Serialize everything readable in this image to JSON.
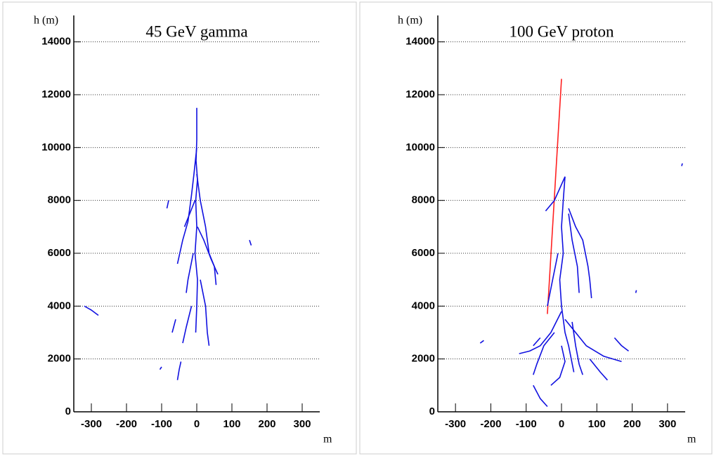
{
  "chart_data": [
    {
      "type": "line",
      "title": "45 GeV gamma",
      "ylabel": "h (m)",
      "xlabel": "m",
      "xlim": [
        -350,
        350
      ],
      "ylim": [
        0,
        15000
      ],
      "xticks": [
        -300,
        -200,
        -100,
        0,
        100,
        200,
        300
      ],
      "yticks": [
        0,
        2000,
        4000,
        6000,
        8000,
        10000,
        12000,
        14000
      ],
      "grid": true,
      "series": [
        {
          "color": "#1010e0",
          "x": [
            0,
            0,
            -2,
            2,
            -3,
            0,
            -5,
            2,
            0,
            -3
          ],
          "values": [
            11500,
            10300,
            9500,
            8800,
            8000,
            7000,
            6000,
            5000,
            4000,
            3000
          ]
        },
        {
          "color": "#1010e0",
          "x": [
            0,
            -8,
            -15,
            -25,
            -40,
            -55
          ],
          "values": [
            10000,
            9000,
            8200,
            7200,
            6500,
            5600
          ]
        },
        {
          "color": "#1010e0",
          "x": [
            0,
            10,
            25,
            35,
            50,
            55
          ],
          "values": [
            9000,
            8000,
            7000,
            6000,
            5500,
            4800
          ]
        },
        {
          "color": "#1010e0",
          "x": [
            -5,
            -20,
            -35
          ],
          "values": [
            8000,
            7500,
            7000
          ]
        },
        {
          "color": "#1010e0",
          "x": [
            2,
            20,
            40,
            60
          ],
          "values": [
            7000,
            6500,
            5800,
            5200
          ]
        },
        {
          "color": "#1010e0",
          "x": [
            -10,
            -25,
            -30
          ],
          "values": [
            6000,
            5000,
            4500
          ]
        },
        {
          "color": "#1010e0",
          "x": [
            10,
            25,
            30,
            35
          ],
          "values": [
            5000,
            4000,
            3000,
            2500
          ]
        },
        {
          "color": "#1010e0",
          "x": [
            -15,
            -30,
            -40
          ],
          "values": [
            4000,
            3200,
            2600
          ]
        },
        {
          "color": "#1010e0",
          "x": [
            -45,
            -50,
            -55
          ],
          "values": [
            1900,
            1600,
            1200
          ]
        },
        {
          "color": "#1010e0",
          "x": [
            -320,
            -300,
            -280
          ],
          "values": [
            4000,
            3850,
            3650
          ]
        },
        {
          "color": "#1010e0",
          "x": [
            -60,
            -70
          ],
          "values": [
            3500,
            3000
          ]
        },
        {
          "color": "#1010e0",
          "x": [
            -80,
            -85
          ],
          "values": [
            8000,
            7700
          ]
        },
        {
          "color": "#1010e0",
          "x": [
            150,
            155
          ],
          "values": [
            6500,
            6300
          ]
        },
        {
          "color": "#1010e0",
          "x": [
            -100,
            -105
          ],
          "values": [
            1700,
            1600
          ]
        }
      ]
    },
    {
      "type": "line",
      "title": "100 GeV proton",
      "ylabel": "h (m)",
      "xlabel": "m",
      "xlim": [
        -350,
        350
      ],
      "ylim": [
        0,
        15000
      ],
      "xticks": [
        -300,
        -200,
        -100,
        0,
        100,
        200,
        300
      ],
      "yticks": [
        0,
        2000,
        4000,
        6000,
        8000,
        10000,
        12000,
        14000
      ],
      "grid": true,
      "series": [
        {
          "color": "#ff2020",
          "x": [
            -40,
            0
          ],
          "values": [
            3700,
            12600
          ]
        },
        {
          "color": "#1010e0",
          "x": [
            10,
            5,
            0,
            5,
            -5,
            0,
            10,
            20,
            35
          ],
          "values": [
            8900,
            8000,
            7000,
            6000,
            5000,
            4000,
            3000,
            2500,
            1500
          ]
        },
        {
          "color": "#1010e0",
          "x": [
            10,
            -20,
            -45
          ],
          "values": [
            8900,
            8000,
            7600
          ]
        },
        {
          "color": "#1010e0",
          "x": [
            20,
            40,
            60,
            75,
            80,
            85
          ],
          "values": [
            7700,
            7000,
            6500,
            5500,
            5000,
            4300
          ]
        },
        {
          "color": "#1010e0",
          "x": [
            20,
            30,
            45,
            50
          ],
          "values": [
            7500,
            6500,
            5500,
            4500
          ]
        },
        {
          "color": "#1010e0",
          "x": [
            -10,
            -25,
            -40
          ],
          "values": [
            6000,
            5000,
            4000
          ]
        },
        {
          "color": "#1010e0",
          "x": [
            0,
            -30,
            -60,
            -90,
            -120
          ],
          "values": [
            3800,
            3000,
            2500,
            2300,
            2200
          ]
        },
        {
          "color": "#1010e0",
          "x": [
            10,
            40,
            70,
            120,
            170
          ],
          "values": [
            3500,
            3000,
            2500,
            2100,
            1900
          ]
        },
        {
          "color": "#1010e0",
          "x": [
            -20,
            -50,
            -70,
            -80
          ],
          "values": [
            3000,
            2500,
            1800,
            1400
          ]
        },
        {
          "color": "#1010e0",
          "x": [
            30,
            40,
            50,
            60
          ],
          "values": [
            3400,
            2500,
            1800,
            1400
          ]
        },
        {
          "color": "#1010e0",
          "x": [
            -60,
            -80
          ],
          "values": [
            2800,
            2500
          ]
        },
        {
          "color": "#1010e0",
          "x": [
            0,
            10,
            -5,
            -30
          ],
          "values": [
            2500,
            1900,
            1300,
            1000
          ]
        },
        {
          "color": "#1010e0",
          "x": [
            80,
            110,
            130
          ],
          "values": [
            2000,
            1500,
            1200
          ]
        },
        {
          "color": "#1010e0",
          "x": [
            -230,
            -220
          ],
          "values": [
            2600,
            2700
          ]
        },
        {
          "color": "#1010e0",
          "x": [
            150,
            170,
            190
          ],
          "values": [
            2800,
            2500,
            2300
          ]
        },
        {
          "color": "#1010e0",
          "x": [
            -80,
            -60,
            -40
          ],
          "values": [
            1000,
            500,
            200
          ]
        },
        {
          "color": "#1010e0",
          "x": [
            210,
            212
          ],
          "values": [
            4500,
            4600
          ]
        },
        {
          "color": "#1010e0",
          "x": [
            340,
            342
          ],
          "values": [
            9300,
            9400
          ]
        }
      ]
    }
  ]
}
